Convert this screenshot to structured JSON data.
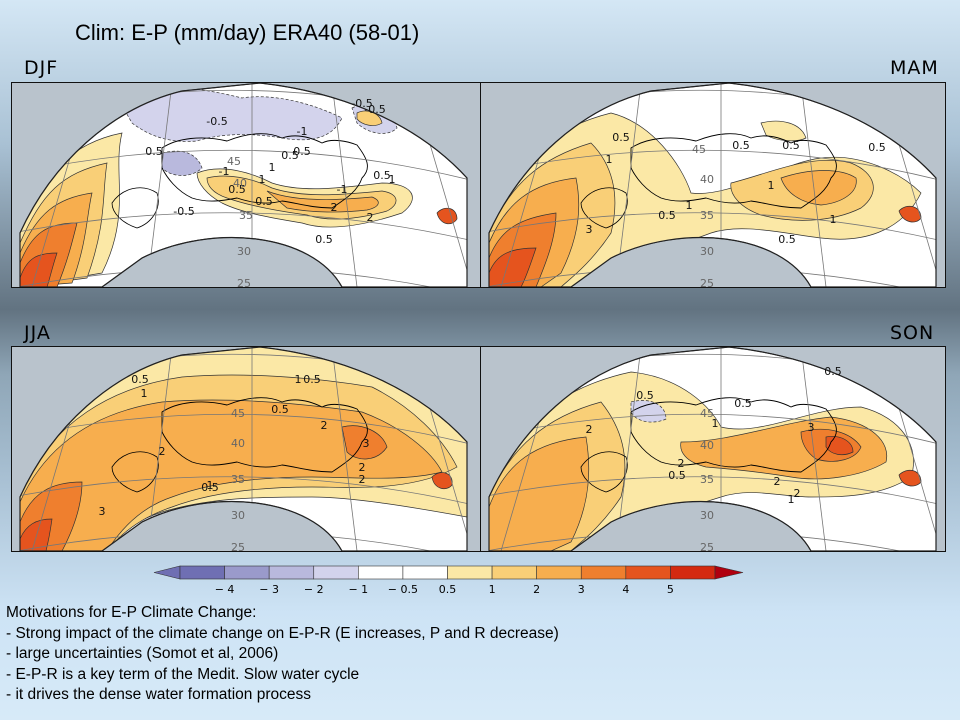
{
  "title": "Clim: E-P (mm/day) ERA40 (58-01)",
  "palette": {
    "neg4": "#6f6fb3",
    "neg3": "#9a9acb",
    "neg2": "#b9b9dd",
    "neg1": "#d3d3ec",
    "white": "#ffffff",
    "p05": "#fbe8a6",
    "p1": "#f9cf77",
    "p2": "#f7ae4e",
    "p3": "#ef7f2e",
    "p4": "#e5541e",
    "p5": "#d42a10",
    "ocean": "#b9c3cc"
  },
  "panels": [
    {
      "season": "DJF",
      "labels": [
        "-0.5",
        "-1",
        "-0.5",
        "0.5",
        "-0.5",
        "-1",
        "0.5",
        "45",
        "0.5",
        "-1",
        "1",
        "0.5",
        "1",
        "40",
        "0.5",
        "-0.5",
        "1",
        "0.5",
        "2",
        "2",
        "0.5",
        "35",
        "30",
        "25"
      ]
    },
    {
      "season": "MAM",
      "labels": [
        "0.5",
        "1",
        "45",
        "0.5",
        "0.5",
        "0.5",
        "40",
        "1",
        "1",
        "35",
        "0.5",
        "3",
        "1",
        "0.5",
        "30",
        "25"
      ]
    },
    {
      "season": "JJA",
      "labels": [
        "0.5",
        "1",
        "1",
        "0.5",
        "45",
        "0.5",
        "2",
        "40",
        "2",
        "3",
        "0.5",
        "2",
        "35",
        "2",
        "1",
        "3",
        "30",
        "25"
      ]
    },
    {
      "season": "SON",
      "labels": [
        "0.5",
        "0.5",
        "2",
        "45",
        "0.5",
        "1",
        "3",
        "2",
        "40",
        "2",
        "0.5",
        "35",
        "2",
        "1",
        "30",
        "25"
      ]
    }
  ],
  "colorbar": {
    "ticks": [
      "-4",
      "-3",
      "-2",
      "-1",
      "-0.5",
      "0.5",
      "1",
      "2",
      "3",
      "4",
      "5"
    ]
  },
  "notes": {
    "heading": "Motivations for E-P Climate Change:",
    "items": [
      "- Strong impact of the climate change on E-P-R (E increases, P and R decrease)",
      "- large uncertainties (Somot et al, 2006)",
      "- E-P-R is a key term of the Medit. Slow water cycle",
      "- it drives the dense water formation process"
    ]
  }
}
